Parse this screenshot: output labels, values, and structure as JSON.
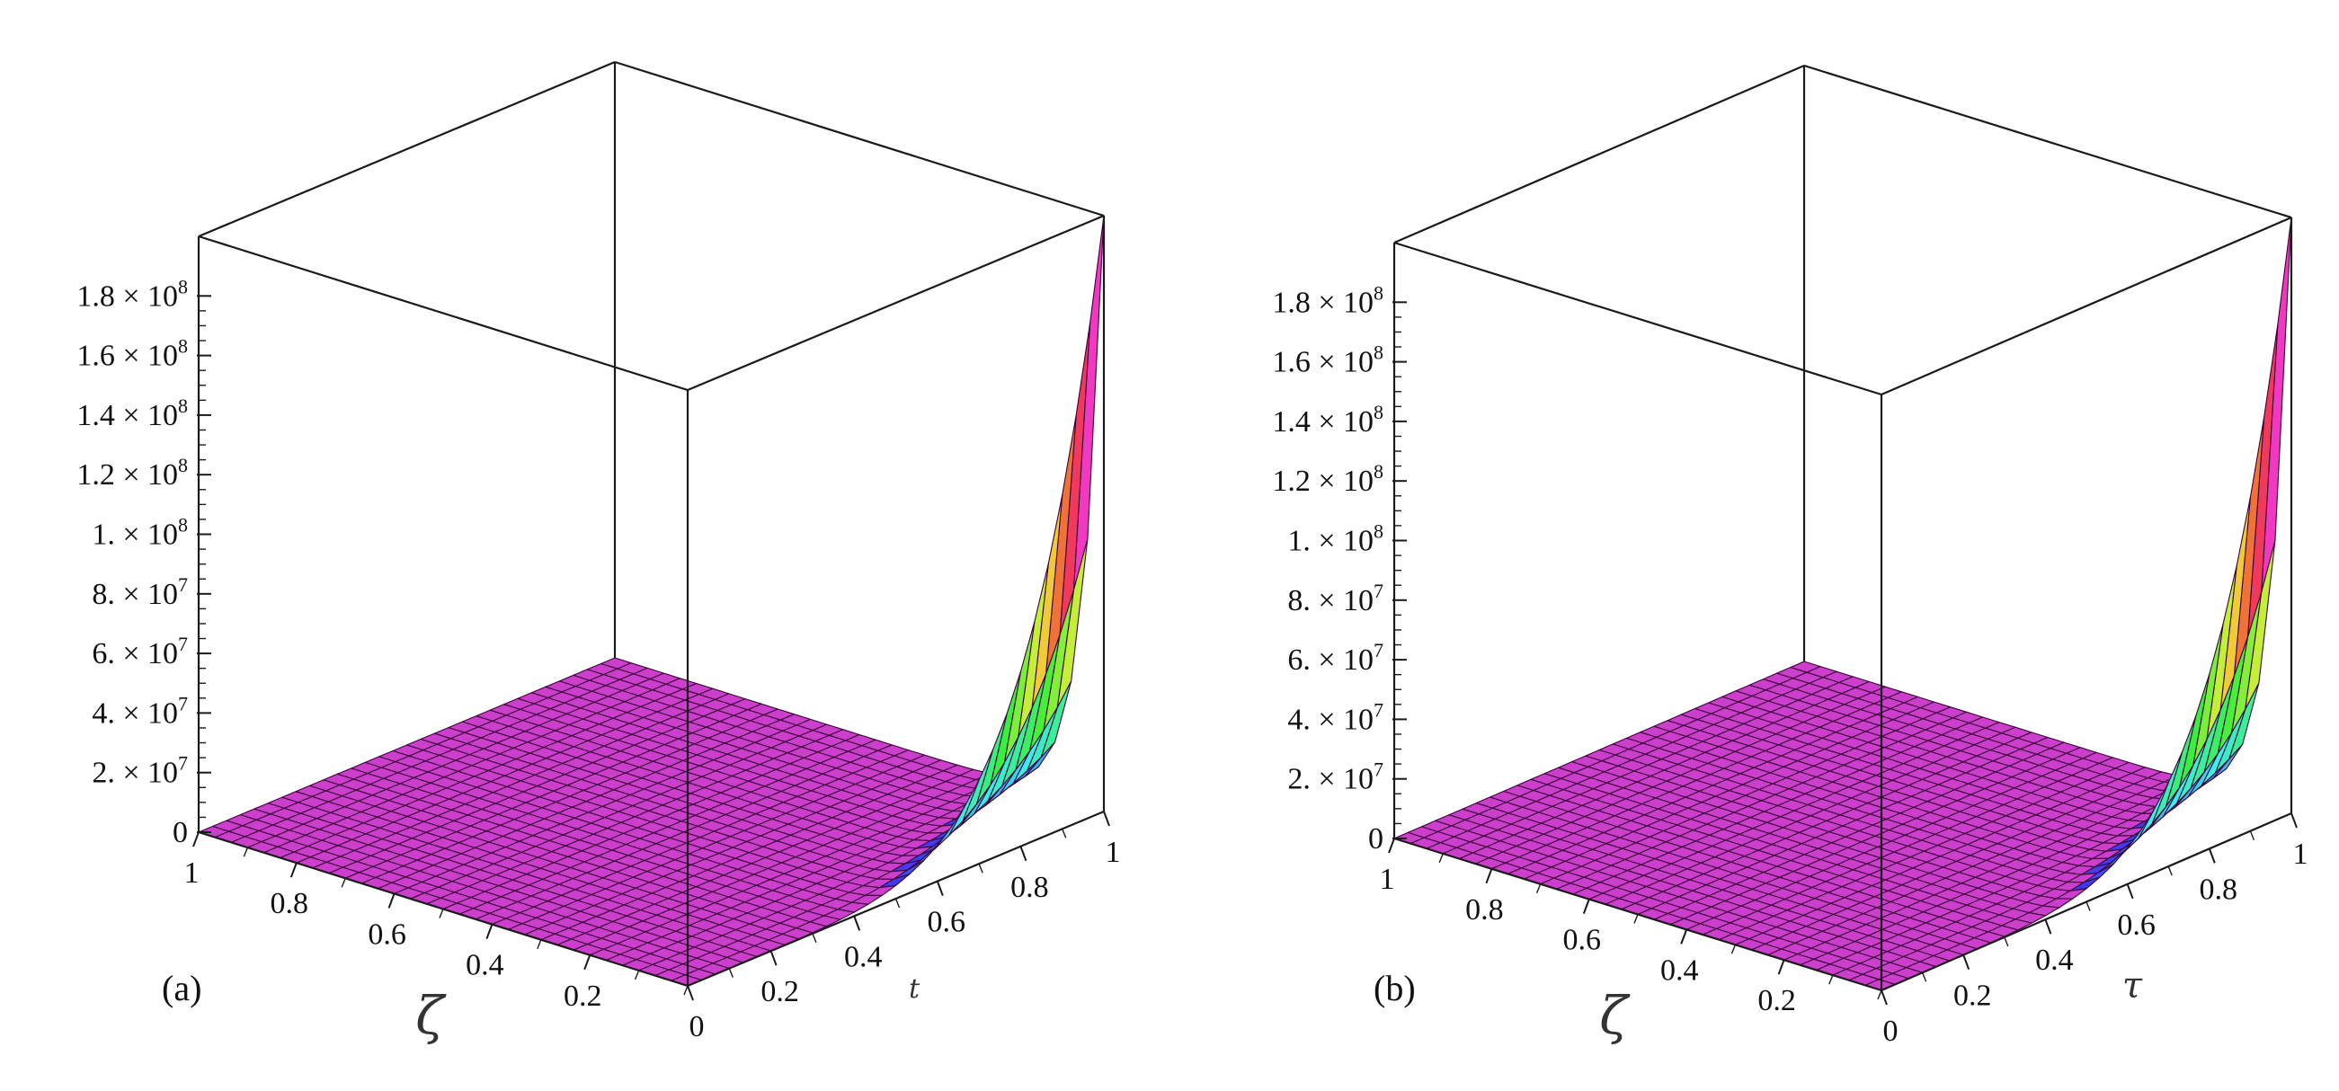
{
  "chart_data": [
    {
      "type": "surface",
      "panel_label": "(a)",
      "xlabel": "ζ",
      "ylabel": "t",
      "zlabel": "",
      "x_range": [
        0,
        1
      ],
      "y_range": [
        0,
        1
      ],
      "zlim": [
        0,
        200000000
      ],
      "x_ticks": [
        "1",
        "0.8",
        "0.6",
        "0.4",
        "0.2"
      ],
      "y_ticks": [
        "0",
        "0.2",
        "0.4",
        "0.6",
        "0.8",
        "1"
      ],
      "z_ticks": [
        {
          "mant": "0",
          "exp": ""
        },
        {
          "mant": "2. × 10",
          "exp": "7"
        },
        {
          "mant": "4. × 10",
          "exp": "7"
        },
        {
          "mant": "6. × 10",
          "exp": "7"
        },
        {
          "mant": "8. × 10",
          "exp": "7"
        },
        {
          "mant": "1. × 10",
          "exp": "8"
        },
        {
          "mant": "1.2 × 10",
          "exp": "8"
        },
        {
          "mant": "1.4 × 10",
          "exp": "8"
        },
        {
          "mant": "1.6 × 10",
          "exp": "8"
        },
        {
          "mant": "1.8 × 10",
          "exp": "8"
        }
      ],
      "surface": {
        "description": "near-zero over the whole domain, rising sharply along the edge t = 1 as ζ approaches 0",
        "peak": {
          "zeta": 0,
          "t": 1,
          "value": 200000000
        },
        "value_at_t1_zeta0.1": 20000000,
        "value_at_t0.6_zeta0": 20000000
      },
      "colors": {
        "plateau": "#cc3fcc",
        "mesh": "#3b0038"
      }
    },
    {
      "type": "surface",
      "panel_label": "(b)",
      "xlabel": "ζ",
      "ylabel": "τ",
      "zlabel": "",
      "x_range": [
        0,
        1
      ],
      "y_range": [
        0,
        1
      ],
      "zlim": [
        0,
        200000000
      ],
      "x_ticks": [
        "1",
        "0.8",
        "0.6",
        "0.4",
        "0.2"
      ],
      "y_ticks": [
        "0",
        "0.2",
        "0.4",
        "0.6",
        "0.8",
        "1"
      ],
      "z_ticks": [
        {
          "mant": "0",
          "exp": ""
        },
        {
          "mant": "2. × 10",
          "exp": "7"
        },
        {
          "mant": "4. × 10",
          "exp": "7"
        },
        {
          "mant": "6. × 10",
          "exp": "7"
        },
        {
          "mant": "8. × 10",
          "exp": "7"
        },
        {
          "mant": "1. × 10",
          "exp": "8"
        },
        {
          "mant": "1.2 × 10",
          "exp": "8"
        },
        {
          "mant": "1.4 × 10",
          "exp": "8"
        },
        {
          "mant": "1.6 × 10",
          "exp": "8"
        },
        {
          "mant": "1.8 × 10",
          "exp": "8"
        }
      ],
      "surface": {
        "description": "near-zero over the whole domain, rising sharply along the edge τ = 1 as ζ approaches 0",
        "peak": {
          "zeta": 0,
          "tau": 1,
          "value": 200000000
        },
        "value_at_tau1_zeta0.1": 20000000,
        "value_at_tau0.6_zeta0": 20000000
      },
      "colors": {
        "plateau": "#cc3fcc",
        "mesh": "#3b0038"
      }
    }
  ]
}
